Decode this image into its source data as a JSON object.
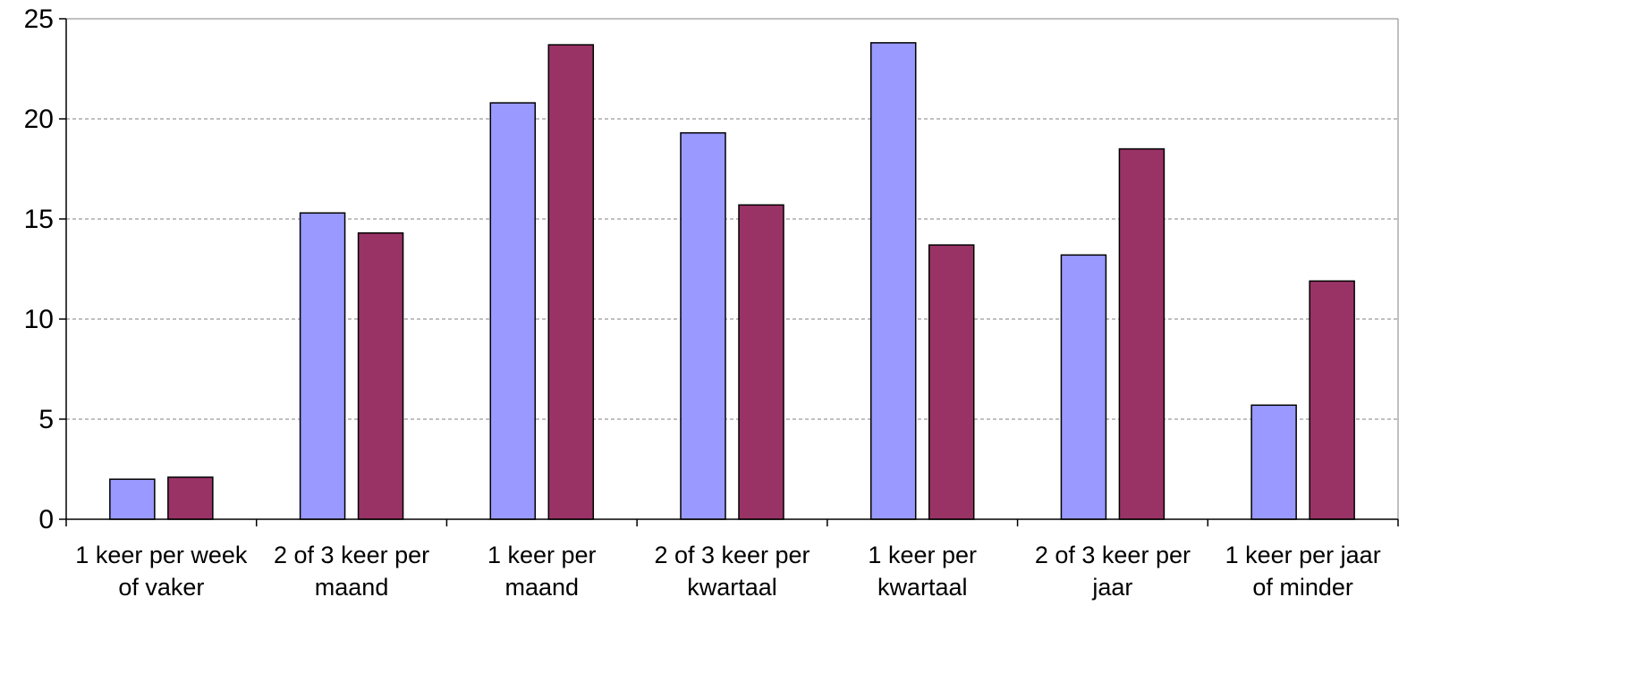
{
  "chart_data": {
    "type": "bar",
    "title": "",
    "xlabel": "",
    "ylabel": "",
    "ylim": [
      0,
      25
    ],
    "yticks": [
      0,
      5,
      10,
      15,
      20,
      25
    ],
    "grid": "horizontal dashed",
    "legend": "none",
    "categories": [
      [
        "1 keer per week",
        "of vaker"
      ],
      [
        "2 of 3 keer per",
        "maand"
      ],
      [
        "1 keer per",
        "maand"
      ],
      [
        "2 of 3 keer per",
        "kwartaal"
      ],
      [
        "1 keer per",
        "kwartaal"
      ],
      [
        "2 of 3 keer per",
        "jaar"
      ],
      [
        "1 keer per jaar",
        "of minder"
      ]
    ],
    "series": [
      {
        "color": "#9999ff",
        "values": [
          2.0,
          15.3,
          20.8,
          19.3,
          23.8,
          13.2,
          5.7
        ]
      },
      {
        "color": "#993366",
        "values": [
          2.1,
          14.3,
          23.7,
          15.7,
          13.7,
          18.5,
          11.9
        ]
      }
    ]
  }
}
